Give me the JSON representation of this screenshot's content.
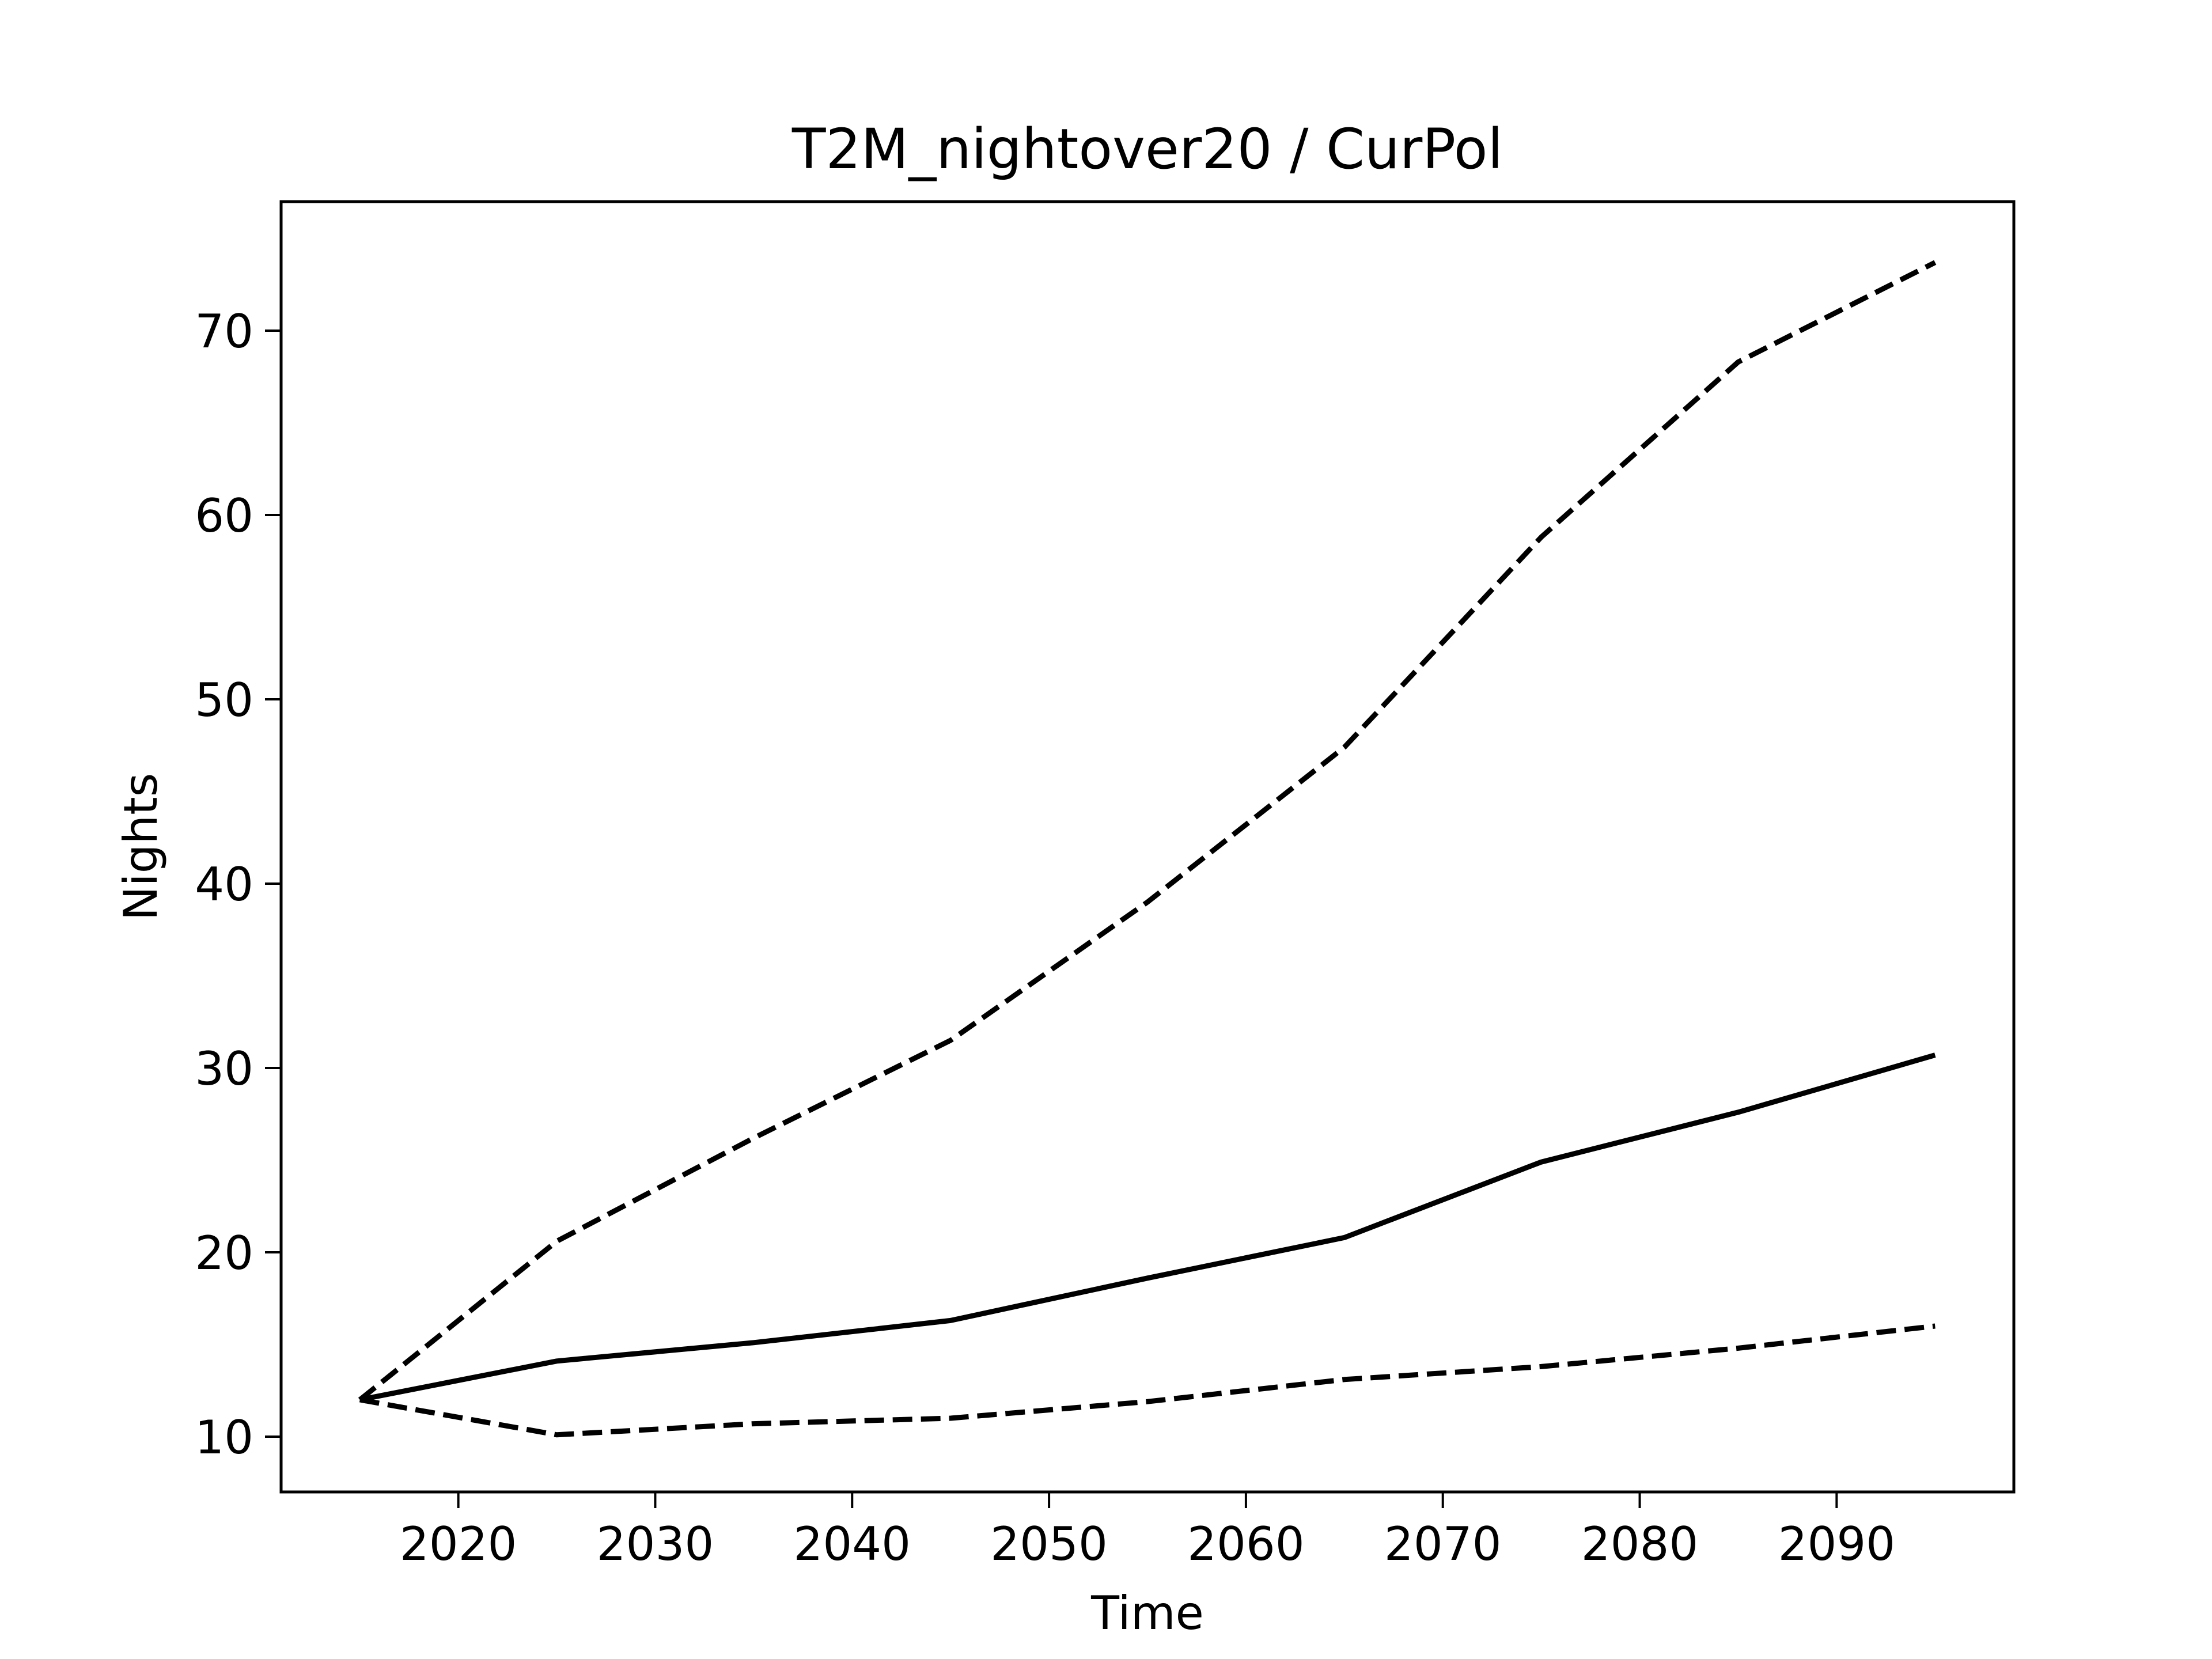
{
  "chart_data": {
    "type": "line",
    "title": "T2M_nightover20 / CurPol",
    "xlabel": "Time",
    "ylabel": "Nights",
    "xlim": [
      2011,
      2099
    ],
    "ylim": [
      7,
      77
    ],
    "xticks": [
      2020,
      2030,
      2040,
      2050,
      2060,
      2070,
      2080,
      2090
    ],
    "yticks": [
      10,
      20,
      30,
      40,
      50,
      60,
      70
    ],
    "grid": false,
    "legend": "none",
    "x": [
      2015,
      2025,
      2035,
      2045,
      2055,
      2065,
      2075,
      2085,
      2095
    ],
    "series": [
      {
        "style": "solid",
        "color": "#000000",
        "values": [
          12.0,
          14.1,
          15.1,
          16.3,
          18.6,
          20.8,
          24.9,
          27.6,
          30.7
        ]
      },
      {
        "style": "dashed",
        "color": "#000000",
        "values": [
          12.0,
          20.6,
          26.2,
          31.5,
          39.0,
          47.4,
          58.8,
          68.3,
          73.7
        ]
      },
      {
        "style": "dashed",
        "color": "#000000",
        "values": [
          12.0,
          10.1,
          10.7,
          11.0,
          11.9,
          13.1,
          13.8,
          14.8,
          16.0
        ]
      }
    ]
  }
}
